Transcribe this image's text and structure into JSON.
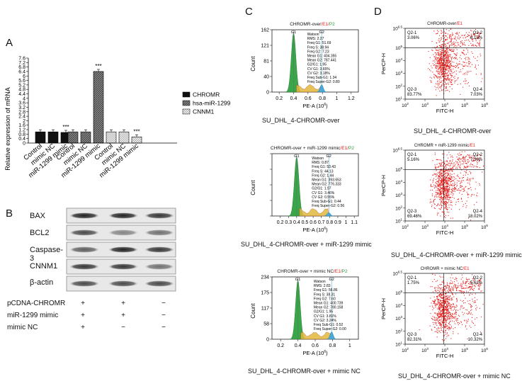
{
  "panels": {
    "a": "A",
    "b": "B",
    "c": "C",
    "d": "D"
  },
  "chart_data": [
    {
      "type": "bar",
      "panel": "A",
      "ylabel": "Relative expression of mRNA",
      "ylim": [
        0,
        7.6
      ],
      "yticks": [
        "0",
        "0.4",
        "0.8",
        "1.2",
        "1.6",
        "2",
        "2.4",
        "2.8",
        "3.2",
        "3.6",
        "4",
        "4.4",
        "4.8",
        "5.2",
        "5.6",
        "6",
        "6.4",
        "6.8",
        "7.2",
        "7.6"
      ],
      "groups": [
        {
          "series": "CHROMR",
          "categories": [
            "Control",
            "mimic NC",
            "miR-1299 mimic"
          ],
          "values": [
            1.0,
            1.0,
            0.95
          ],
          "sig": [
            "",
            "",
            "***"
          ]
        },
        {
          "series": "hsa-miR-1299",
          "categories": [
            "Control",
            "mimic NC",
            "miR-1299 mimic"
          ],
          "values": [
            1.0,
            1.0,
            6.4
          ],
          "sig": [
            "",
            "",
            "***"
          ]
        },
        {
          "series": "CNNM1",
          "categories": [
            "Control",
            "mimic NC",
            "miR-1299 mimic"
          ],
          "values": [
            1.0,
            1.0,
            0.55
          ],
          "sig": [
            "",
            "",
            "***"
          ]
        }
      ],
      "legend": [
        {
          "name": "CHROMR",
          "color": "#111111",
          "pattern": "solid"
        },
        {
          "name": "hsa-miR-1299",
          "color": "#555555",
          "pattern": "hatch"
        },
        {
          "name": "CNNM1",
          "color": "#dddddd",
          "pattern": "check"
        }
      ]
    },
    {
      "type": "histogram",
      "panel": "C",
      "plots": [
        {
          "title": [
            "CHROMR-over",
            "/",
            "E1",
            "/",
            "P2"
          ],
          "ymax": "162",
          "yticks": [
            "0",
            "40",
            "81",
            "121",
            "162"
          ],
          "xticks": [
            "0.2",
            "0.4",
            "0.6",
            "0.8",
            "1",
            "1.2"
          ],
          "xlabel": "PE-A (10",
          "ylabel": "Count",
          "g1": "G1",
          "g2": "G2",
          "stats": [
            "Watson",
            "RMS: 2.27",
            "Freq G1: 51.69",
            "Freq S: 38.94",
            "Freq G2: 7.23",
            "Mean G1: 404.355",
            "Mean G2: 787.441",
            "G2/G1: 1.95",
            "CV G1: 3.65%",
            "CV G2: 3.18%",
            "Freq Sub-G1: 1.34",
            "Freq Super-G2: 0.80"
          ],
          "caption": "SU_DHL_4-CHROMR-over"
        },
        {
          "title": [
            "CHROMR-over + miR-1299 mimic",
            "/",
            "E1",
            "/",
            "P2"
          ],
          "ymax": "",
          "yticks": [
            "",
            "",
            "",
            "",
            ""
          ],
          "xticks": [
            "0.2",
            "0.3",
            "0.4",
            "0.5",
            "0.6",
            "0.7",
            "0.8",
            "0.9",
            "1",
            "1.1"
          ],
          "xlabel": "PE-A (10",
          "ylabel": "Count",
          "g1": "G1",
          "g2": "G2",
          "stats": [
            "Watson",
            "RMS: 0.87",
            "Freq G1: 53.43",
            "Freq S: 44.13",
            "Freq G2: 1.44",
            "Mean G1: 393.653",
            "Mean G2: 776.333",
            "G2/G1: 1.97",
            "CV G1: 3.46%",
            "CV G2: 0.55%",
            "Freq Sub-G1: 0.44",
            "Freq Super-G2: 0.56"
          ],
          "caption": "SU_DHL_4-CHROMR-over + miR-1299 mimic"
        },
        {
          "title": [
            "CHROMR-over + mimic NC",
            "/",
            "E1",
            "/",
            "P2"
          ],
          "ymax": "234",
          "yticks": [
            "0",
            "58",
            "117",
            "175",
            "234"
          ],
          "xticks": [
            "0.2",
            "0.4",
            "0.6",
            "0.8",
            "1"
          ],
          "xlabel": "PE-A (10",
          "ylabel": "Count",
          "g1": "G1",
          "g2": "G2",
          "stats": [
            "Watson",
            "RMS: 2.83",
            "Freq G1: 56.86",
            "Freq S: 38.31",
            "Freq G2: 7.60",
            "Mean G1: 400.739",
            "Mean G2: 780.158",
            "G2/G1: 1.95",
            "CV G1: 3.81%",
            "CV G2: 3.24%",
            "Freq Sub-G1: 0.52",
            "Freq Super-G2: 0.00"
          ],
          "caption": "SU_DHL_4-CHROMR-over + mimic NC"
        }
      ]
    },
    {
      "type": "scatter",
      "panel": "D",
      "plots": [
        {
          "title": [
            "CHROMR-over",
            "/",
            "E1"
          ],
          "q1": [
            "Q2-1",
            "3.06%"
          ],
          "q2": [
            "Q2-2",
            "6.13%"
          ],
          "q3": [
            "Q2-3",
            "83.77%"
          ],
          "q4": [
            "Q2-4",
            "7.03%"
          ],
          "caption": "SU_DHL_4-CHROMR-over",
          "density": 0.84
        },
        {
          "title": [
            "CHROMR + miR-1299 mimic",
            "/",
            "E1"
          ],
          "q1": [
            "Q2-1",
            "5.16%"
          ],
          "q2": [
            "Q2-2",
            "7.36%"
          ],
          "q3": [
            "Q2-3",
            "69.46%"
          ],
          "q4": [
            "Q2-4",
            "18.02%"
          ],
          "caption": "SU_DHL_4-CHROMR-over + miR-1299 mimic",
          "density": 0.69
        },
        {
          "title": [
            "CHROMR + mimic NC",
            "/",
            "E1"
          ],
          "q1": [
            "Q2-1",
            "1.75%"
          ],
          "q2": [
            "Q2-2",
            "5.62%"
          ],
          "q3": [
            "Q2-3",
            "82.31%"
          ],
          "q4": [
            "Q2-4",
            "10.32%"
          ],
          "caption": "SU_DHL_4-CHROMR-over + mimic NC",
          "density": 0.82
        }
      ],
      "xlabel": "FITC-H",
      "ylabel": "PerCP-H",
      "yticks": [
        "10",
        "10",
        "10",
        "10",
        "10",
        "10"
      ],
      "yexp": [
        "1",
        "2",
        "3",
        "4",
        "5",
        "6.5"
      ],
      "xticks": [
        "10",
        "10",
        "10",
        "10",
        "10"
      ],
      "xexp": [
        "2",
        "3",
        "4",
        "5",
        "6"
      ]
    }
  ],
  "blot": {
    "bands": [
      "BAX",
      "BCL2",
      "Caspase-3",
      "CNNM1",
      "β-actin"
    ],
    "conditions": [
      {
        "label": "pCDNA-CHROMR",
        "values": [
          "+",
          "+",
          "−"
        ]
      },
      {
        "label": "miR-1299 mimic",
        "values": [
          "+",
          "+",
          "−"
        ]
      },
      {
        "label": "mimic NC",
        "values": [
          "+",
          "−",
          "−"
        ]
      }
    ]
  },
  "colors": {
    "g1": "#3aa64a",
    "g2": "#4aa9d6",
    "s": "#e2b93b",
    "dots": "#e8201d",
    "red": "#e8201d",
    "green": "#2a9c3e"
  }
}
